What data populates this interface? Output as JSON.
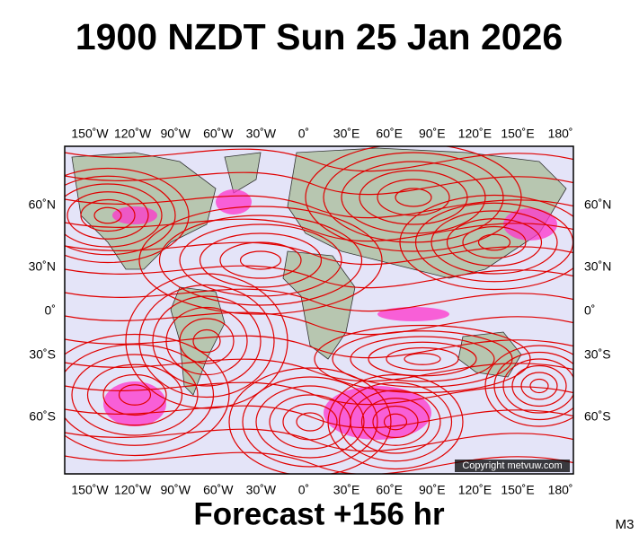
{
  "header": {
    "title": "1900 NZDT Sun 25 Jan 2026"
  },
  "map": {
    "lon_labels": [
      "150˚W",
      "120˚W",
      "90˚W",
      "60˚W",
      "30˚W",
      "0˚",
      "30˚E",
      "60˚E",
      "90˚E",
      "120˚E",
      "150˚E",
      "180˚"
    ],
    "lat_labels": [
      "60˚N",
      "30˚N",
      "0˚",
      "30˚S",
      "60˚S"
    ],
    "copyright": "Copyright metvuw.com"
  },
  "footer": {
    "forecast": "Forecast +156 hr",
    "code": "M3"
  }
}
